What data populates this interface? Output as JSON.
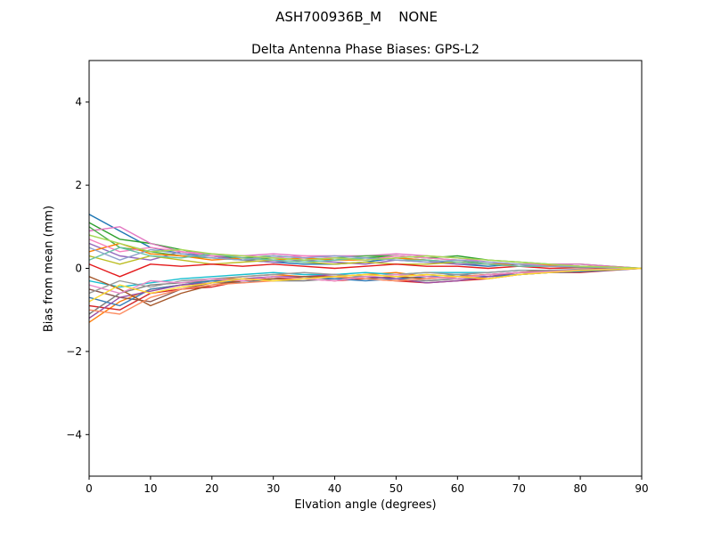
{
  "figure": {
    "title": "ASH700936B_M    NONE",
    "subtitle": "Delta Antenna Phase Biases: GPS-L2",
    "xlabel": "Elvation angle (degrees)",
    "ylabel": "Bias from mean (mm)"
  },
  "chart_data": {
    "type": "line",
    "title": "ASH700936B_M    NONE",
    "subtitle": "Delta Antenna Phase Biases: GPS-L2",
    "xlabel": "Elvation angle (degrees)",
    "ylabel": "Bias from mean (mm)",
    "xlim": [
      0,
      90
    ],
    "ylim": [
      -5,
      5
    ],
    "xticks": [
      0,
      10,
      20,
      30,
      40,
      50,
      60,
      70,
      80,
      90
    ],
    "xticklabels": [
      "0",
      "10",
      "20",
      "30",
      "40",
      "50",
      "60",
      "70",
      "80",
      "90"
    ],
    "yticks": [
      -4,
      -2,
      0,
      2,
      4
    ],
    "yticklabels": [
      "−4",
      "−2",
      "0",
      "2",
      "4"
    ],
    "grid": false,
    "legend": "none",
    "x": [
      0,
      5,
      10,
      15,
      20,
      25,
      30,
      35,
      40,
      45,
      50,
      55,
      60,
      65,
      70,
      75,
      80,
      85,
      90
    ],
    "series": [
      {
        "color": "#1f77b4",
        "values": [
          1.3,
          0.9,
          0.5,
          0.35,
          0.3,
          0.2,
          0.15,
          0.1,
          0.1,
          0.15,
          0.25,
          0.2,
          0.1,
          0.05,
          0.1,
          0.1,
          0.05,
          0.02,
          0.0
        ]
      },
      {
        "color": "#ff7f0e",
        "values": [
          -1.3,
          -0.8,
          -0.5,
          -0.4,
          -0.3,
          -0.2,
          -0.15,
          -0.2,
          -0.2,
          -0.15,
          -0.1,
          -0.2,
          -0.25,
          -0.2,
          -0.1,
          -0.05,
          -0.05,
          -0.02,
          0.0
        ]
      },
      {
        "color": "#2ca02c",
        "values": [
          1.1,
          0.7,
          0.6,
          0.45,
          0.3,
          0.25,
          0.3,
          0.25,
          0.2,
          0.25,
          0.3,
          0.25,
          0.3,
          0.2,
          0.15,
          0.1,
          0.1,
          0.05,
          0.0
        ]
      },
      {
        "color": "#d62728",
        "values": [
          -0.9,
          -1.0,
          -0.6,
          -0.5,
          -0.45,
          -0.3,
          -0.25,
          -0.25,
          -0.3,
          -0.25,
          -0.3,
          -0.35,
          -0.3,
          -0.25,
          -0.15,
          -0.1,
          -0.1,
          -0.05,
          0.0
        ]
      },
      {
        "color": "#9467bd",
        "values": [
          0.6,
          0.3,
          0.2,
          0.4,
          0.3,
          0.2,
          0.15,
          0.2,
          0.15,
          0.1,
          0.2,
          0.15,
          0.1,
          0.1,
          0.05,
          0.1,
          0.05,
          0.02,
          0.0
        ]
      },
      {
        "color": "#8c564b",
        "values": [
          -0.5,
          -0.7,
          -0.8,
          -0.5,
          -0.35,
          -0.3,
          -0.2,
          -0.25,
          -0.2,
          -0.25,
          -0.2,
          -0.15,
          -0.2,
          -0.15,
          -0.1,
          -0.1,
          -0.05,
          -0.03,
          0.0
        ]
      },
      {
        "color": "#e377c2",
        "values": [
          0.9,
          1.0,
          0.6,
          0.4,
          0.35,
          0.3,
          0.35,
          0.3,
          0.3,
          0.3,
          0.35,
          0.3,
          0.25,
          0.15,
          0.1,
          0.1,
          0.1,
          0.05,
          0.0
        ]
      },
      {
        "color": "#7f7f7f",
        "values": [
          -1.1,
          -0.6,
          -0.4,
          -0.35,
          -0.3,
          -0.25,
          -0.3,
          -0.3,
          -0.25,
          -0.2,
          -0.25,
          -0.3,
          -0.25,
          -0.2,
          -0.15,
          -0.1,
          -0.05,
          -0.03,
          0.0
        ]
      },
      {
        "color": "#bcbd22",
        "values": [
          0.3,
          0.1,
          0.3,
          0.2,
          0.1,
          0.15,
          0.2,
          0.15,
          0.1,
          0.15,
          0.1,
          0.1,
          0.15,
          0.1,
          0.05,
          0.05,
          0.05,
          0.02,
          0.0
        ]
      },
      {
        "color": "#17becf",
        "values": [
          -0.3,
          -0.45,
          -0.35,
          -0.25,
          -0.2,
          -0.15,
          -0.1,
          -0.15,
          -0.15,
          -0.1,
          -0.15,
          -0.1,
          -0.1,
          -0.1,
          -0.05,
          -0.05,
          -0.03,
          -0.02,
          0.0
        ]
      },
      {
        "color": "#e41a1c",
        "values": [
          0.1,
          -0.2,
          0.1,
          0.05,
          0.1,
          0.05,
          0.1,
          0.05,
          0.0,
          0.05,
          0.1,
          0.05,
          0.05,
          0.0,
          0.05,
          0.0,
          0.02,
          0.01,
          0.0
        ]
      },
      {
        "color": "#377eb8",
        "values": [
          -0.7,
          -0.9,
          -0.5,
          -0.4,
          -0.3,
          -0.35,
          -0.25,
          -0.2,
          -0.25,
          -0.3,
          -0.25,
          -0.2,
          -0.15,
          -0.2,
          -0.15,
          -0.1,
          -0.08,
          -0.04,
          0.0
        ]
      },
      {
        "color": "#4daf4a",
        "values": [
          1.0,
          0.5,
          0.4,
          0.3,
          0.25,
          0.2,
          0.25,
          0.2,
          0.25,
          0.3,
          0.3,
          0.25,
          0.2,
          0.1,
          0.1,
          0.05,
          0.05,
          0.02,
          0.0
        ]
      },
      {
        "color": "#984ea3",
        "values": [
          -1.2,
          -0.7,
          -0.55,
          -0.4,
          -0.35,
          -0.25,
          -0.2,
          -0.2,
          -0.15,
          -0.2,
          -0.25,
          -0.35,
          -0.3,
          -0.2,
          -0.1,
          -0.08,
          -0.05,
          -0.02,
          0.0
        ]
      },
      {
        "color": "#ff7f00",
        "values": [
          0.4,
          0.6,
          0.35,
          0.3,
          0.2,
          0.25,
          0.2,
          0.25,
          0.2,
          0.2,
          0.25,
          0.2,
          0.15,
          0.1,
          0.1,
          0.08,
          0.05,
          0.03,
          0.0
        ]
      },
      {
        "color": "#a65628",
        "values": [
          -0.2,
          -0.5,
          -0.9,
          -0.6,
          -0.4,
          -0.3,
          -0.25,
          -0.2,
          -0.2,
          -0.15,
          -0.2,
          -0.25,
          -0.2,
          -0.15,
          -0.1,
          -0.05,
          -0.05,
          -0.02,
          0.0
        ]
      },
      {
        "color": "#f781bf",
        "values": [
          0.7,
          0.4,
          0.5,
          0.4,
          0.3,
          0.3,
          0.25,
          0.3,
          0.25,
          0.2,
          0.3,
          0.25,
          0.2,
          0.15,
          0.1,
          0.1,
          0.05,
          0.02,
          0.0
        ]
      },
      {
        "color": "#999999",
        "values": [
          -0.6,
          -0.3,
          -0.45,
          -0.3,
          -0.25,
          -0.2,
          -0.15,
          -0.1,
          -0.15,
          -0.2,
          -0.15,
          -0.1,
          -0.15,
          -0.1,
          -0.05,
          -0.05,
          -0.02,
          -0.01,
          0.0
        ]
      },
      {
        "color": "#66c2a5",
        "values": [
          0.2,
          0.5,
          0.3,
          0.25,
          0.35,
          0.25,
          0.2,
          0.15,
          0.2,
          0.25,
          0.2,
          0.2,
          0.15,
          0.1,
          0.05,
          0.05,
          0.03,
          0.02,
          0.0
        ]
      },
      {
        "color": "#fc8d62",
        "values": [
          -1.0,
          -1.1,
          -0.7,
          -0.5,
          -0.4,
          -0.35,
          -0.3,
          -0.25,
          -0.2,
          -0.25,
          -0.3,
          -0.25,
          -0.2,
          -0.15,
          -0.1,
          -0.1,
          -0.05,
          -0.02,
          0.0
        ]
      },
      {
        "color": "#8da0cb",
        "values": [
          0.5,
          0.2,
          0.45,
          0.35,
          0.25,
          0.2,
          0.3,
          0.25,
          0.3,
          0.25,
          0.2,
          0.15,
          0.2,
          0.15,
          0.1,
          0.05,
          0.05,
          0.02,
          0.0
        ]
      },
      {
        "color": "#e78ac8",
        "values": [
          -0.4,
          -0.6,
          -0.3,
          -0.35,
          -0.25,
          -0.3,
          -0.2,
          -0.25,
          -0.3,
          -0.2,
          -0.15,
          -0.2,
          -0.25,
          -0.15,
          -0.1,
          -0.08,
          -0.04,
          -0.02,
          0.0
        ]
      },
      {
        "color": "#a6d854",
        "values": [
          0.8,
          0.6,
          0.4,
          0.45,
          0.35,
          0.3,
          0.25,
          0.2,
          0.25,
          0.2,
          0.25,
          0.3,
          0.25,
          0.2,
          0.15,
          0.1,
          0.05,
          0.03,
          0.0
        ]
      },
      {
        "color": "#ffd92f",
        "values": [
          -0.8,
          -0.4,
          -0.6,
          -0.45,
          -0.35,
          -0.25,
          -0.3,
          -0.25,
          -0.2,
          -0.15,
          -0.2,
          -0.15,
          -0.2,
          -0.25,
          -0.15,
          -0.1,
          -0.05,
          -0.03,
          0.0
        ]
      }
    ]
  }
}
